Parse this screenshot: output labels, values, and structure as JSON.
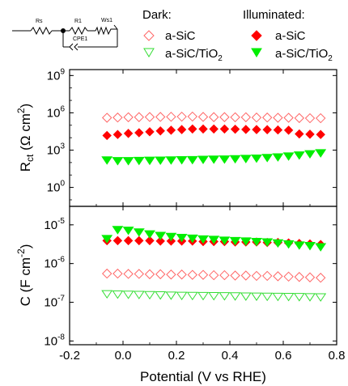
{
  "legend": {
    "dark_title": "Dark:",
    "illuminated_title": "Illuminated:",
    "dark_sic": "a-SiC",
    "dark_sic_tio2_base": "a-SiC/TiO",
    "dark_sic_tio2_sub": "2",
    "ill_sic": "a-SiC",
    "ill_sic_tio2_base": "a-SiC/TiO",
    "ill_sic_tio2_sub": "2"
  },
  "circuit": {
    "rs_label": "Rs",
    "r1_label": "R1",
    "cpe_label": "CPE1",
    "ws_label": "Ws1"
  },
  "axes": {
    "top_ylabel_main": "R",
    "top_ylabel_sub": "ct",
    "top_ylabel_rest": " (Ω cm",
    "top_ylabel_sup": "2",
    "top_ylabel_end": ")",
    "bottom_ylabel_main": "C (F cm",
    "bottom_ylabel_sup": "-2",
    "bottom_ylabel_end": ")",
    "xlabel": "Potential (V vs RHE)"
  },
  "colors": {
    "red": "#ff0000",
    "red_open": "#ff6666",
    "green": "#00ee00",
    "green_open": "#33dd33"
  },
  "chart_data": [
    {
      "type": "scatter",
      "title": "",
      "ylabel": "Rct (Ω cm2)",
      "xlabel": "",
      "yscale": "log",
      "xlim": [
        -0.2,
        0.8
      ],
      "ylim": [
        0.03,
        3000000000
      ],
      "yticks": [
        1,
        1000,
        1000000,
        1000000000
      ],
      "yticklabels": [
        [
          "10",
          "0"
        ],
        [
          "10",
          "3"
        ],
        [
          "10",
          "6"
        ],
        [
          "10",
          "9"
        ]
      ],
      "grid": false,
      "x": [
        -0.06,
        -0.02,
        0.02,
        0.06,
        0.1,
        0.14,
        0.18,
        0.22,
        0.26,
        0.3,
        0.34,
        0.38,
        0.42,
        0.46,
        0.5,
        0.54,
        0.58,
        0.62,
        0.66,
        0.7,
        0.74
      ],
      "series": [
        {
          "name": "Dark a-SiC",
          "marker": "diamond-open",
          "color": "red",
          "values": [
            400000,
            420000,
            440000,
            450000,
            460000,
            470000,
            480000,
            490000,
            500000,
            470000,
            450000,
            450000,
            440000,
            440000,
            420000,
            420000,
            400000,
            400000,
            380000,
            370000,
            370000
          ]
        },
        {
          "name": "Illuminated a-SiC",
          "marker": "diamond-filled",
          "color": "red",
          "values": [
            15000,
            18000,
            22000,
            25000,
            30000,
            35000,
            40000,
            45000,
            50000,
            50000,
            50000,
            50000,
            48000,
            46000,
            45000,
            44000,
            42000,
            40000,
            20000,
            19000,
            18000
          ]
        },
        {
          "name": "Dark a-SiC/TiO2",
          "marker": "triangle-open",
          "color": "green",
          "values": []
        },
        {
          "name": "Illuminated a-SiC/TiO2",
          "marker": "triangle-filled",
          "color": "green",
          "values": [
            160,
            140,
            140,
            145,
            150,
            155,
            160,
            165,
            170,
            180,
            185,
            190,
            200,
            210,
            225,
            250,
            280,
            330,
            400,
            500,
            600
          ]
        }
      ]
    },
    {
      "type": "scatter",
      "title": "",
      "ylabel": "C (F cm-2)",
      "xlabel": "Potential (V vs RHE)",
      "yscale": "log",
      "xlim": [
        -0.2,
        0.8
      ],
      "ylim": [
        8e-09,
        3e-05
      ],
      "yticks": [
        1e-08,
        1e-07,
        1e-06,
        1e-05
      ],
      "yticklabels": [
        [
          "10",
          "-8"
        ],
        [
          "10",
          "-7"
        ],
        [
          "10",
          "-6"
        ],
        [
          "10",
          "-5"
        ]
      ],
      "xticks": [
        -0.2,
        0.0,
        0.2,
        0.4,
        0.6,
        0.8
      ],
      "xticklabels": [
        "-0.2",
        "0.0",
        "0.2",
        "0.4",
        "0.6",
        "0.8"
      ],
      "grid": false,
      "x": [
        -0.06,
        -0.02,
        0.02,
        0.06,
        0.1,
        0.14,
        0.18,
        0.22,
        0.26,
        0.3,
        0.34,
        0.38,
        0.42,
        0.46,
        0.5,
        0.54,
        0.58,
        0.62,
        0.66,
        0.7,
        0.74
      ],
      "series": [
        {
          "name": "Dark a-SiC",
          "marker": "diamond-open",
          "color": "red",
          "values": [
            5.5e-07,
            5.5e-07,
            5.4e-07,
            5.4e-07,
            5.3e-07,
            5.3e-07,
            5.2e-07,
            5.2e-07,
            5.1e-07,
            5.1e-07,
            5e-07,
            5e-07,
            4.9e-07,
            4.9e-07,
            4.8e-07,
            4.8e-07,
            4.7e-07,
            4.6e-07,
            4.5e-07,
            4.4e-07,
            4.3e-07
          ]
        },
        {
          "name": "Illuminated a-SiC",
          "marker": "diamond-filled",
          "color": "red",
          "values": [
            3.9e-06,
            3.9e-06,
            3.9e-06,
            3.9e-06,
            3.9e-06,
            3.8e-06,
            3.8e-06,
            3.8e-06,
            3.8e-06,
            3.7e-06,
            3.7e-06,
            3.7e-06,
            3.6e-06,
            3.6e-06,
            3.6e-06,
            3.5e-06,
            3.5e-06,
            3.4e-06,
            3.3e-06,
            3.2e-06,
            3.1e-06
          ]
        },
        {
          "name": "Dark a-SiC/TiO2",
          "marker": "triangle-open",
          "color": "green",
          "values": [
            1.65e-07,
            1.62e-07,
            1.6e-07,
            1.58e-07,
            1.56e-07,
            1.54e-07,
            1.52e-07,
            1.5e-07,
            1.49e-07,
            1.48e-07,
            1.47e-07,
            1.46e-07,
            1.45e-07,
            1.44e-07,
            1.43e-07,
            1.42e-07,
            1.41e-07,
            1.4e-07,
            1.39e-07,
            1.38e-07,
            1.37e-07
          ]
        },
        {
          "name": "Illuminated a-SiC/TiO2",
          "marker": "triangle-filled",
          "color": "green",
          "values": [
            4.4e-06,
            7.5e-06,
            7.2e-06,
            6.5e-06,
            5.8e-06,
            5.3e-06,
            5e-06,
            4.7e-06,
            4.5e-06,
            4.3e-06,
            4.2e-06,
            4e-06,
            3.9e-06,
            3.8e-06,
            3.7e-06,
            3.6e-06,
            3.4e-06,
            3.2e-06,
            3e-06,
            2.9e-06,
            2.7e-06
          ]
        }
      ]
    }
  ]
}
